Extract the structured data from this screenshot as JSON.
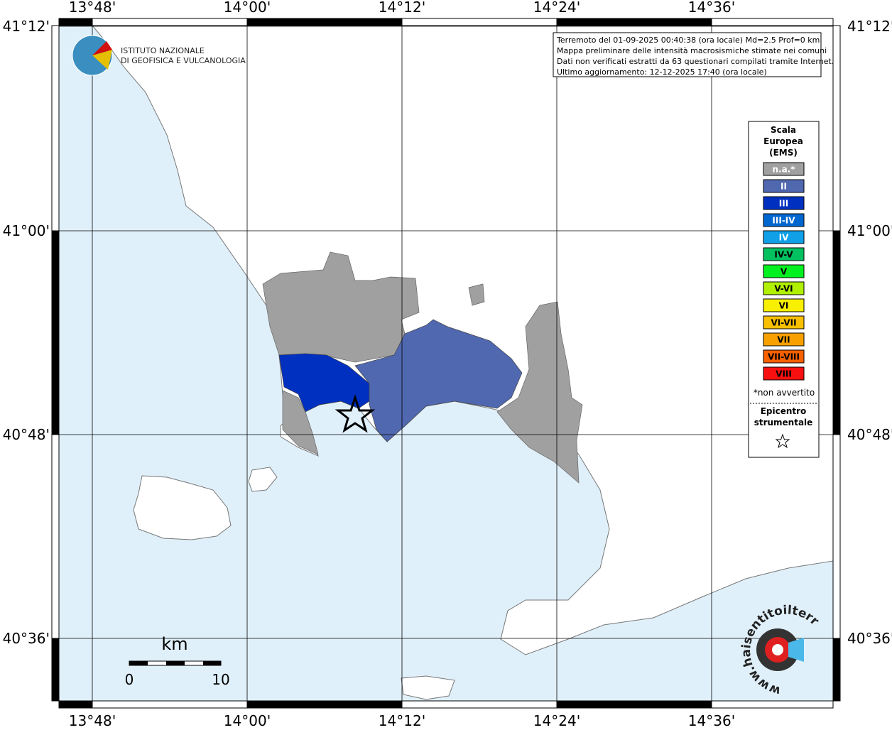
{
  "header": {
    "logo_lines": [
      "ISTITUTO NAZIONALE",
      "DI GEOFISICA E VULCANOLOGIA"
    ]
  },
  "info_box": {
    "lines": [
      "Terremoto del 01-09-2025 00:40:38 (ora locale) Md=2.5 Prof=0 km",
      "Mappa preliminare delle intensità macrosismiche stimate nei comuni",
      "Dati non verificati estratti da 63 questionari compilati tramite Internet.",
      "Ultimo aggiornamento: 12-12-2025 17:40 (ora locale)"
    ]
  },
  "map": {
    "lon_labels": [
      "13°48'",
      "14°00'",
      "14°12'",
      "14°24'",
      "14°36'"
    ],
    "lat_labels": [
      "41°12'",
      "41°00'",
      "40°48'",
      "40°36'"
    ]
  },
  "legend": {
    "title_lines": [
      "Scala",
      "Europea",
      "(EMS)"
    ],
    "items": [
      {
        "label": "n.a.*",
        "color": "#a0a0a0"
      },
      {
        "label": "II",
        "color": "#5068b0"
      },
      {
        "label": "III",
        "color": "#0030c0"
      },
      {
        "label": "III-IV",
        "color": "#0066d0"
      },
      {
        "label": "IV",
        "color": "#10a0e8"
      },
      {
        "label": "IV-V",
        "color": "#00c060"
      },
      {
        "label": "V",
        "color": "#00f020"
      },
      {
        "label": "V-VI",
        "color": "#b0f000"
      },
      {
        "label": "VI",
        "color": "#f8f000"
      },
      {
        "label": "VI-VII",
        "color": "#f8c000"
      },
      {
        "label": "VII",
        "color": "#f8a000"
      },
      {
        "label": "VII-VIII",
        "color": "#f86000"
      },
      {
        "label": "VIII",
        "color": "#f81010"
      }
    ],
    "note": "*non avvertito",
    "epicenter_lines": [
      "Epicentro",
      "strumentale"
    ]
  },
  "scale_bar": {
    "unit": "km",
    "labels": [
      0,
      10
    ]
  },
  "footer_logo": {
    "text": "www.haisentitoilterremoto.it"
  }
}
